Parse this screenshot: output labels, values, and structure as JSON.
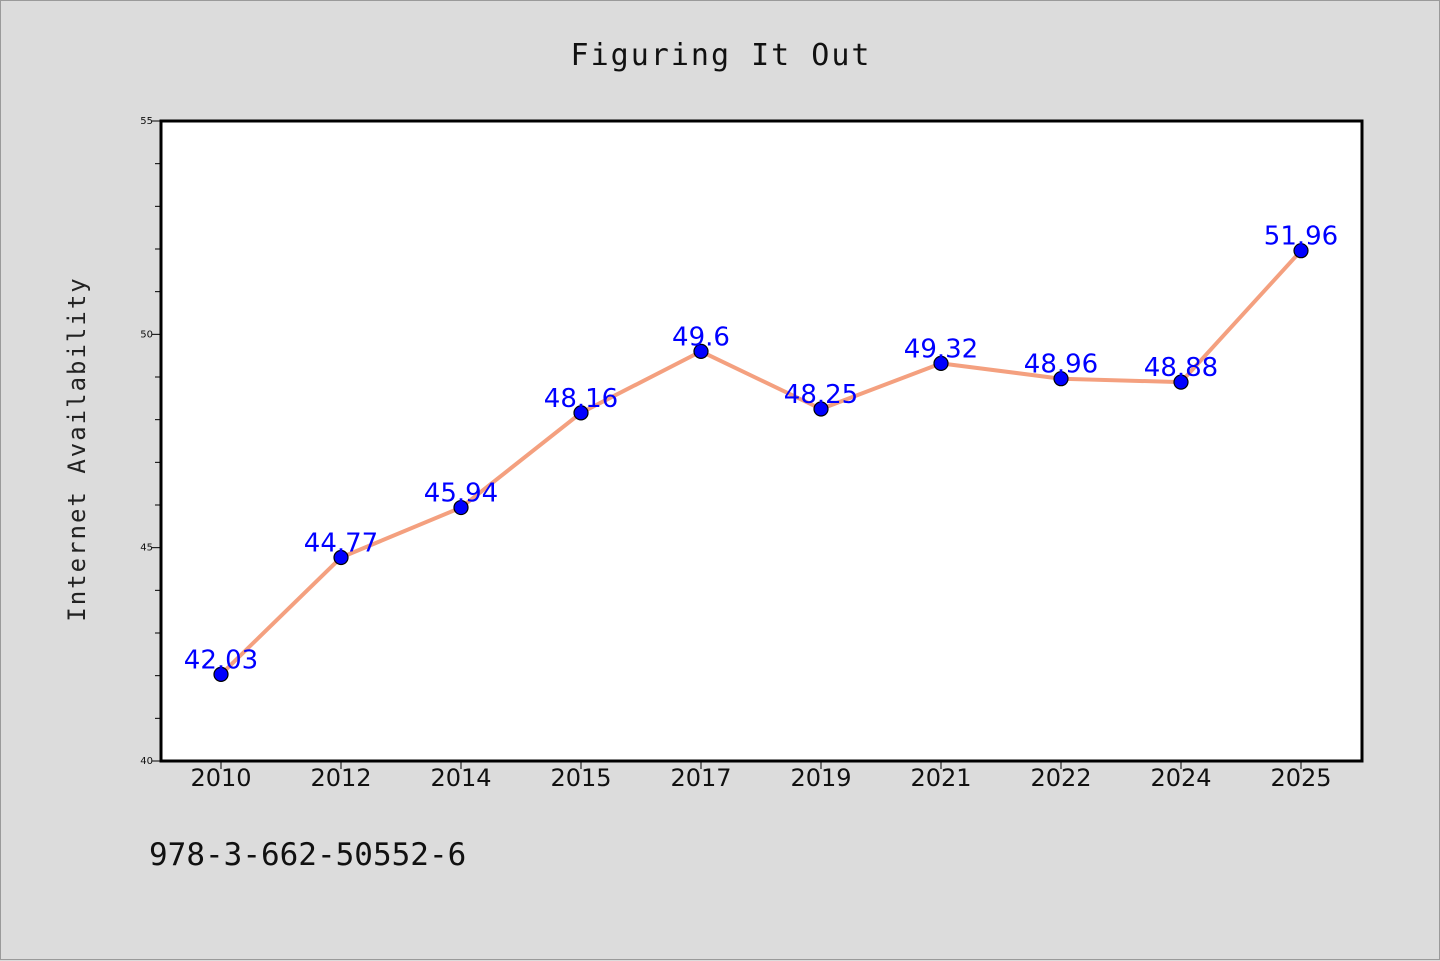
{
  "footer_code": "978-3-662-50552-6",
  "colors": {
    "background": "#dcdcdc",
    "plot_background": "#ffffff",
    "line": "#f4a07f",
    "marker": "#0000ff",
    "label": "#0000ff"
  },
  "chart_data": {
    "type": "line",
    "title": "Figuring It Out",
    "xlabel": "",
    "ylabel": "Internet Availability",
    "x": [
      "2010",
      "2012",
      "2014",
      "2015",
      "2017",
      "2019",
      "2021",
      "2022",
      "2024",
      "2025"
    ],
    "series": [
      {
        "values": [
          42.03,
          44.77,
          45.94,
          48.16,
          49.6,
          48.25,
          49.32,
          48.96,
          48.88,
          51.96
        ],
        "labels": [
          "42.03",
          "44.77",
          "45.94",
          "48.16",
          "49.6",
          "48.25",
          "49.32",
          "48.96",
          "48.88",
          "51.96"
        ]
      }
    ],
    "ylim": [
      40,
      55
    ],
    "yticks": [
      "40",
      "45",
      "50",
      "55"
    ],
    "y_minor_step": 1,
    "grid": false,
    "legend": "none",
    "data_labels": true
  }
}
